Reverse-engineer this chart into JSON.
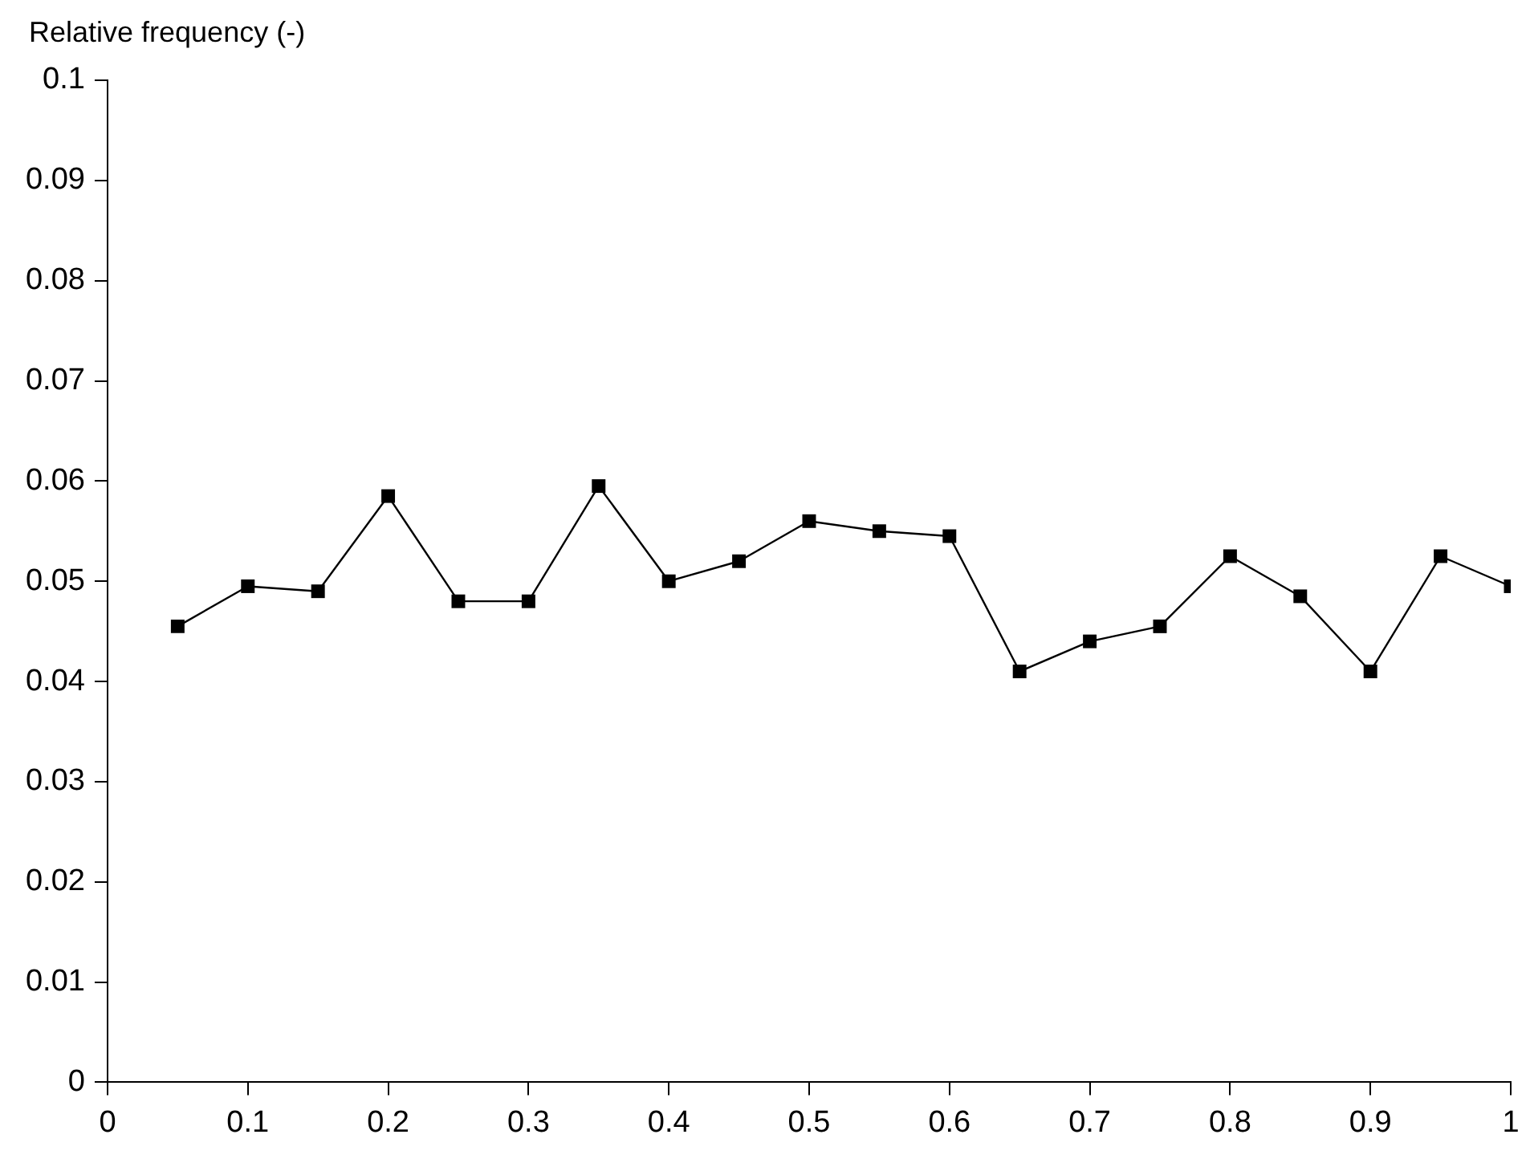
{
  "chart_data": {
    "type": "line",
    "ylabel": "Relative frequency (-)",
    "x": [
      0.05,
      0.1,
      0.15,
      0.2,
      0.25,
      0.3,
      0.35,
      0.4,
      0.45,
      0.5,
      0.55,
      0.6,
      0.65,
      0.7,
      0.75,
      0.8,
      0.85,
      0.9,
      0.95,
      1
    ],
    "series": [
      {
        "color": "#000000",
        "values": [
          0.0455,
          0.0495,
          0.049,
          0.0585,
          0.048,
          0.048,
          0.0595,
          0.05,
          0.052,
          0.056,
          0.055,
          0.0545,
          0.041,
          0.044,
          0.0455,
          0.0525,
          0.0485,
          0.041,
          0.0525,
          0.0495
        ]
      }
    ],
    "xlim": [
      0,
      1
    ],
    "xticks": [
      0,
      0.1,
      0.2,
      0.3,
      0.4,
      0.5,
      0.6,
      0.7,
      0.8,
      0.9,
      1
    ],
    "ylim": [
      0,
      0.1
    ],
    "yticks": [
      0,
      0.01,
      0.02,
      0.03,
      0.04,
      0.05,
      0.06,
      0.07,
      0.08,
      0.09,
      0.1
    ],
    "grid": false,
    "legend": false,
    "marker": "square",
    "line_style": "solid"
  }
}
